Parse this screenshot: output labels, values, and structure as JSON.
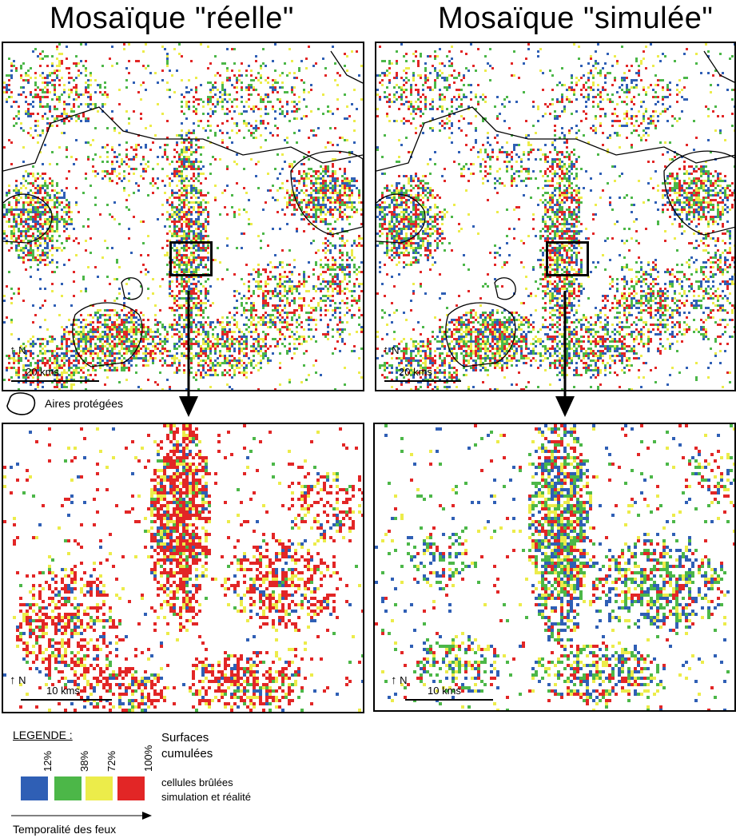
{
  "titles": {
    "real": "Mosaïque \"réelle\"",
    "simulated": "Mosaïque \"simulée\""
  },
  "maps": {
    "top_left": {
      "north_label": "N",
      "scale_label": "20 kms"
    },
    "top_right": {
      "north_label": "N",
      "scale_label": "20 kms"
    },
    "bottom_left": {
      "north_label": "N",
      "scale_label": "10 kms"
    },
    "bottom_right": {
      "north_label": "N",
      "scale_label": "10 kms"
    }
  },
  "protected_areas_label": "Aires protégées",
  "legend": {
    "title": "LEGENDE :",
    "classes": [
      {
        "label": "12%",
        "color": "#2f5fb5"
      },
      {
        "label": "38%",
        "color": "#4cb748"
      },
      {
        "label": "72%",
        "color": "#ecec4a"
      },
      {
        "label": "100%",
        "color": "#e22626"
      }
    ],
    "surfaces_label": "Surfaces",
    "cumulees_label": "cumulées",
    "burned_line1": "cellules brûlées",
    "burned_line2": "simulation et réalité",
    "timeline_label": "Temporalité des feux"
  }
}
